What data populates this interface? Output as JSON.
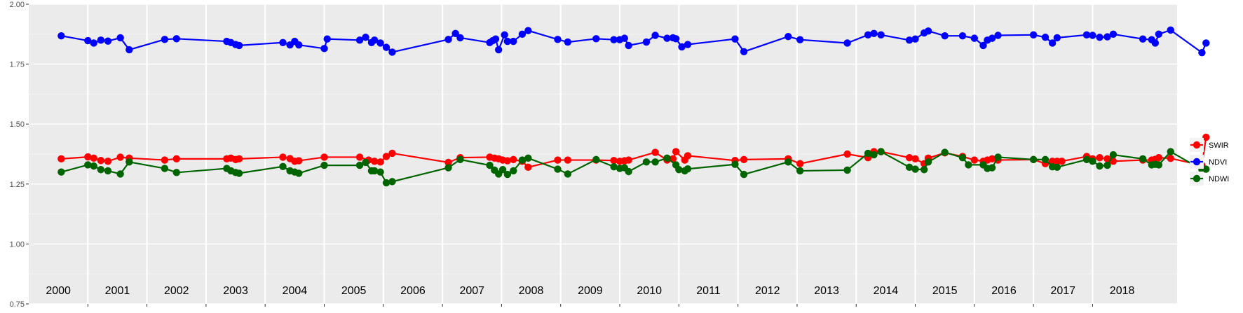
{
  "chart_data": {
    "type": "line",
    "title": "",
    "xlabel": "",
    "ylabel": "",
    "xlim": [
      1999.5,
      2018.93
    ],
    "ylim": [
      0.75,
      2.0
    ],
    "yticks": [
      0.75,
      1.0,
      1.25,
      1.5,
      1.75,
      2.0
    ],
    "ytick_labels": [
      "0.75",
      "1.00",
      "1.25",
      "1.50",
      "1.75",
      "2.00"
    ],
    "year_labels": [
      "2000",
      "2001",
      "2002",
      "2003",
      "2004",
      "2005",
      "2006",
      "2007",
      "2008",
      "2009",
      "2010",
      "2011",
      "2012",
      "2013",
      "2014",
      "2015",
      "2016",
      "2017",
      "2018"
    ],
    "grid": true,
    "legend_position": "right",
    "series": [
      {
        "name": "SWIR",
        "color": "#ff0000",
        "points": [
          [
            2000.05,
            1.355
          ],
          [
            2000.5,
            1.363
          ],
          [
            2000.6,
            1.358
          ],
          [
            2000.72,
            1.348
          ],
          [
            2000.84,
            1.345
          ],
          [
            2001.05,
            1.362
          ],
          [
            2001.2,
            1.358
          ],
          [
            2001.8,
            1.35
          ],
          [
            2002.0,
            1.355
          ],
          [
            2002.85,
            1.355
          ],
          [
            2002.92,
            1.358
          ],
          [
            2003.0,
            1.352
          ],
          [
            2003.06,
            1.355
          ],
          [
            2003.8,
            1.362
          ],
          [
            2003.92,
            1.356
          ],
          [
            2004.0,
            1.345
          ],
          [
            2004.07,
            1.347
          ],
          [
            2004.5,
            1.362
          ],
          [
            2005.1,
            1.362
          ],
          [
            2005.25,
            1.35
          ],
          [
            2005.35,
            1.345
          ],
          [
            2005.45,
            1.342
          ],
          [
            2005.55,
            1.365
          ],
          [
            2005.65,
            1.378
          ],
          [
            2006.6,
            1.34
          ],
          [
            2006.8,
            1.36
          ],
          [
            2007.3,
            1.362
          ],
          [
            2007.38,
            1.358
          ],
          [
            2007.45,
            1.355
          ],
          [
            2007.52,
            1.35
          ],
          [
            2007.6,
            1.347
          ],
          [
            2007.7,
            1.352
          ],
          [
            2007.85,
            1.345
          ],
          [
            2007.95,
            1.32
          ],
          [
            2008.45,
            1.35
          ],
          [
            2008.62,
            1.35
          ],
          [
            2009.1,
            1.35
          ],
          [
            2009.4,
            1.348
          ],
          [
            2009.5,
            1.345
          ],
          [
            2009.58,
            1.347
          ],
          [
            2009.65,
            1.35
          ],
          [
            2010.1,
            1.382
          ],
          [
            2010.3,
            1.35
          ],
          [
            2010.4,
            1.355
          ],
          [
            2010.45,
            1.385
          ],
          [
            2010.6,
            1.35
          ],
          [
            2010.65,
            1.368
          ],
          [
            2011.45,
            1.348
          ],
          [
            2011.6,
            1.352
          ],
          [
            2012.35,
            1.355
          ],
          [
            2012.55,
            1.335
          ],
          [
            2013.35,
            1.375
          ],
          [
            2013.7,
            1.36
          ],
          [
            2013.8,
            1.385
          ],
          [
            2013.92,
            1.385
          ],
          [
            2014.4,
            1.36
          ],
          [
            2014.5,
            1.355
          ],
          [
            2014.65,
            1.335
          ],
          [
            2014.72,
            1.358
          ],
          [
            2015.0,
            1.38
          ],
          [
            2015.3,
            1.365
          ],
          [
            2015.5,
            1.35
          ],
          [
            2015.65,
            1.345
          ],
          [
            2015.72,
            1.35
          ],
          [
            2015.8,
            1.355
          ],
          [
            2015.9,
            1.35
          ],
          [
            2016.5,
            1.352
          ],
          [
            2016.7,
            1.335
          ],
          [
            2016.82,
            1.345
          ],
          [
            2016.9,
            1.345
          ],
          [
            2016.98,
            1.345
          ],
          [
            2017.4,
            1.365
          ],
          [
            2017.5,
            1.355
          ],
          [
            2017.62,
            1.36
          ],
          [
            2017.75,
            1.355
          ],
          [
            2017.85,
            1.345
          ],
          [
            2018.35,
            1.35
          ],
          [
            2018.5,
            1.35
          ],
          [
            2018.56,
            1.353
          ],
          [
            2018.62,
            1.36
          ],
          [
            2018.82,
            1.357
          ],
          [
            2019.35,
            1.328
          ],
          [
            2019.42,
            1.445
          ]
        ]
      },
      {
        "name": "NDVI",
        "color": "#0000ff",
        "points": [
          [
            2000.05,
            1.868
          ],
          [
            2000.5,
            1.848
          ],
          [
            2000.6,
            1.838
          ],
          [
            2000.72,
            1.85
          ],
          [
            2000.84,
            1.846
          ],
          [
            2001.05,
            1.86
          ],
          [
            2001.2,
            1.81
          ],
          [
            2001.8,
            1.853
          ],
          [
            2002.0,
            1.856
          ],
          [
            2002.85,
            1.845
          ],
          [
            2002.92,
            1.84
          ],
          [
            2003.0,
            1.832
          ],
          [
            2003.06,
            1.828
          ],
          [
            2003.8,
            1.84
          ],
          [
            2003.92,
            1.83
          ],
          [
            2004.0,
            1.845
          ],
          [
            2004.07,
            1.83
          ],
          [
            2004.5,
            1.815
          ],
          [
            2004.55,
            1.855
          ],
          [
            2005.1,
            1.85
          ],
          [
            2005.2,
            1.862
          ],
          [
            2005.3,
            1.84
          ],
          [
            2005.35,
            1.85
          ],
          [
            2005.45,
            1.838
          ],
          [
            2005.55,
            1.82
          ],
          [
            2005.65,
            1.8
          ],
          [
            2006.6,
            1.853
          ],
          [
            2006.72,
            1.878
          ],
          [
            2006.8,
            1.86
          ],
          [
            2007.3,
            1.84
          ],
          [
            2007.35,
            1.848
          ],
          [
            2007.4,
            1.855
          ],
          [
            2007.45,
            1.81
          ],
          [
            2007.55,
            1.872
          ],
          [
            2007.6,
            1.845
          ],
          [
            2007.7,
            1.845
          ],
          [
            2007.85,
            1.875
          ],
          [
            2007.95,
            1.89
          ],
          [
            2008.45,
            1.853
          ],
          [
            2008.62,
            1.842
          ],
          [
            2009.1,
            1.856
          ],
          [
            2009.4,
            1.852
          ],
          [
            2009.5,
            1.852
          ],
          [
            2009.58,
            1.858
          ],
          [
            2009.65,
            1.828
          ],
          [
            2009.95,
            1.842
          ],
          [
            2010.1,
            1.87
          ],
          [
            2010.3,
            1.858
          ],
          [
            2010.4,
            1.86
          ],
          [
            2010.45,
            1.856
          ],
          [
            2010.55,
            1.822
          ],
          [
            2010.65,
            1.832
          ],
          [
            2011.45,
            1.855
          ],
          [
            2011.6,
            1.802
          ],
          [
            2012.35,
            1.865
          ],
          [
            2012.55,
            1.852
          ],
          [
            2013.35,
            1.838
          ],
          [
            2013.7,
            1.872
          ],
          [
            2013.8,
            1.878
          ],
          [
            2013.92,
            1.872
          ],
          [
            2014.4,
            1.85
          ],
          [
            2014.5,
            1.855
          ],
          [
            2014.65,
            1.88
          ],
          [
            2014.72,
            1.888
          ],
          [
            2015.0,
            1.868
          ],
          [
            2015.3,
            1.868
          ],
          [
            2015.5,
            1.858
          ],
          [
            2015.65,
            1.828
          ],
          [
            2015.72,
            1.85
          ],
          [
            2015.8,
            1.858
          ],
          [
            2015.9,
            1.87
          ],
          [
            2016.5,
            1.872
          ],
          [
            2016.7,
            1.862
          ],
          [
            2016.82,
            1.838
          ],
          [
            2016.9,
            1.86
          ],
          [
            2017.4,
            1.872
          ],
          [
            2017.5,
            1.87
          ],
          [
            2017.62,
            1.862
          ],
          [
            2017.75,
            1.864
          ],
          [
            2017.85,
            1.875
          ],
          [
            2018.35,
            1.855
          ],
          [
            2018.5,
            1.852
          ],
          [
            2018.56,
            1.838
          ],
          [
            2018.62,
            1.875
          ],
          [
            2018.82,
            1.892
          ],
          [
            2019.35,
            1.798
          ],
          [
            2019.42,
            1.838
          ]
        ]
      },
      {
        "name": "NDWI",
        "color": "#006400",
        "points": [
          [
            2000.05,
            1.3
          ],
          [
            2000.5,
            1.33
          ],
          [
            2000.6,
            1.325
          ],
          [
            2000.72,
            1.31
          ],
          [
            2000.84,
            1.305
          ],
          [
            2001.05,
            1.292
          ],
          [
            2001.2,
            1.342
          ],
          [
            2001.8,
            1.315
          ],
          [
            2002.0,
            1.298
          ],
          [
            2002.85,
            1.315
          ],
          [
            2002.92,
            1.305
          ],
          [
            2003.0,
            1.298
          ],
          [
            2003.06,
            1.295
          ],
          [
            2003.8,
            1.323
          ],
          [
            2003.92,
            1.305
          ],
          [
            2004.0,
            1.3
          ],
          [
            2004.07,
            1.295
          ],
          [
            2004.5,
            1.328
          ],
          [
            2005.1,
            1.328
          ],
          [
            2005.2,
            1.34
          ],
          [
            2005.3,
            1.305
          ],
          [
            2005.35,
            1.305
          ],
          [
            2005.45,
            1.3
          ],
          [
            2005.55,
            1.255
          ],
          [
            2005.65,
            1.26
          ],
          [
            2006.6,
            1.318
          ],
          [
            2006.8,
            1.352
          ],
          [
            2007.3,
            1.328
          ],
          [
            2007.38,
            1.308
          ],
          [
            2007.45,
            1.292
          ],
          [
            2007.52,
            1.31
          ],
          [
            2007.6,
            1.29
          ],
          [
            2007.7,
            1.305
          ],
          [
            2007.85,
            1.35
          ],
          [
            2007.95,
            1.358
          ],
          [
            2008.45,
            1.312
          ],
          [
            2008.62,
            1.292
          ],
          [
            2009.1,
            1.352
          ],
          [
            2009.4,
            1.322
          ],
          [
            2009.5,
            1.315
          ],
          [
            2009.58,
            1.318
          ],
          [
            2009.65,
            1.302
          ],
          [
            2009.95,
            1.342
          ],
          [
            2010.1,
            1.342
          ],
          [
            2010.3,
            1.358
          ],
          [
            2010.45,
            1.33
          ],
          [
            2010.5,
            1.31
          ],
          [
            2010.6,
            1.305
          ],
          [
            2010.65,
            1.313
          ],
          [
            2011.45,
            1.332
          ],
          [
            2011.6,
            1.29
          ],
          [
            2012.35,
            1.342
          ],
          [
            2012.55,
            1.305
          ],
          [
            2013.35,
            1.308
          ],
          [
            2013.7,
            1.378
          ],
          [
            2013.8,
            1.372
          ],
          [
            2013.92,
            1.385
          ],
          [
            2014.4,
            1.32
          ],
          [
            2014.5,
            1.312
          ],
          [
            2014.65,
            1.31
          ],
          [
            2014.72,
            1.342
          ],
          [
            2015.0,
            1.382
          ],
          [
            2015.3,
            1.36
          ],
          [
            2015.4,
            1.33
          ],
          [
            2015.65,
            1.33
          ],
          [
            2015.72,
            1.315
          ],
          [
            2015.8,
            1.318
          ],
          [
            2015.9,
            1.362
          ],
          [
            2016.5,
            1.352
          ],
          [
            2016.7,
            1.352
          ],
          [
            2016.82,
            1.322
          ],
          [
            2016.9,
            1.32
          ],
          [
            2017.4,
            1.352
          ],
          [
            2017.5,
            1.345
          ],
          [
            2017.62,
            1.325
          ],
          [
            2017.75,
            1.328
          ],
          [
            2017.85,
            1.372
          ],
          [
            2018.35,
            1.355
          ],
          [
            2018.5,
            1.33
          ],
          [
            2018.56,
            1.332
          ],
          [
            2018.62,
            1.33
          ],
          [
            2018.82,
            1.385
          ],
          [
            2019.35,
            1.31
          ],
          [
            2019.42,
            1.312
          ]
        ]
      }
    ]
  }
}
